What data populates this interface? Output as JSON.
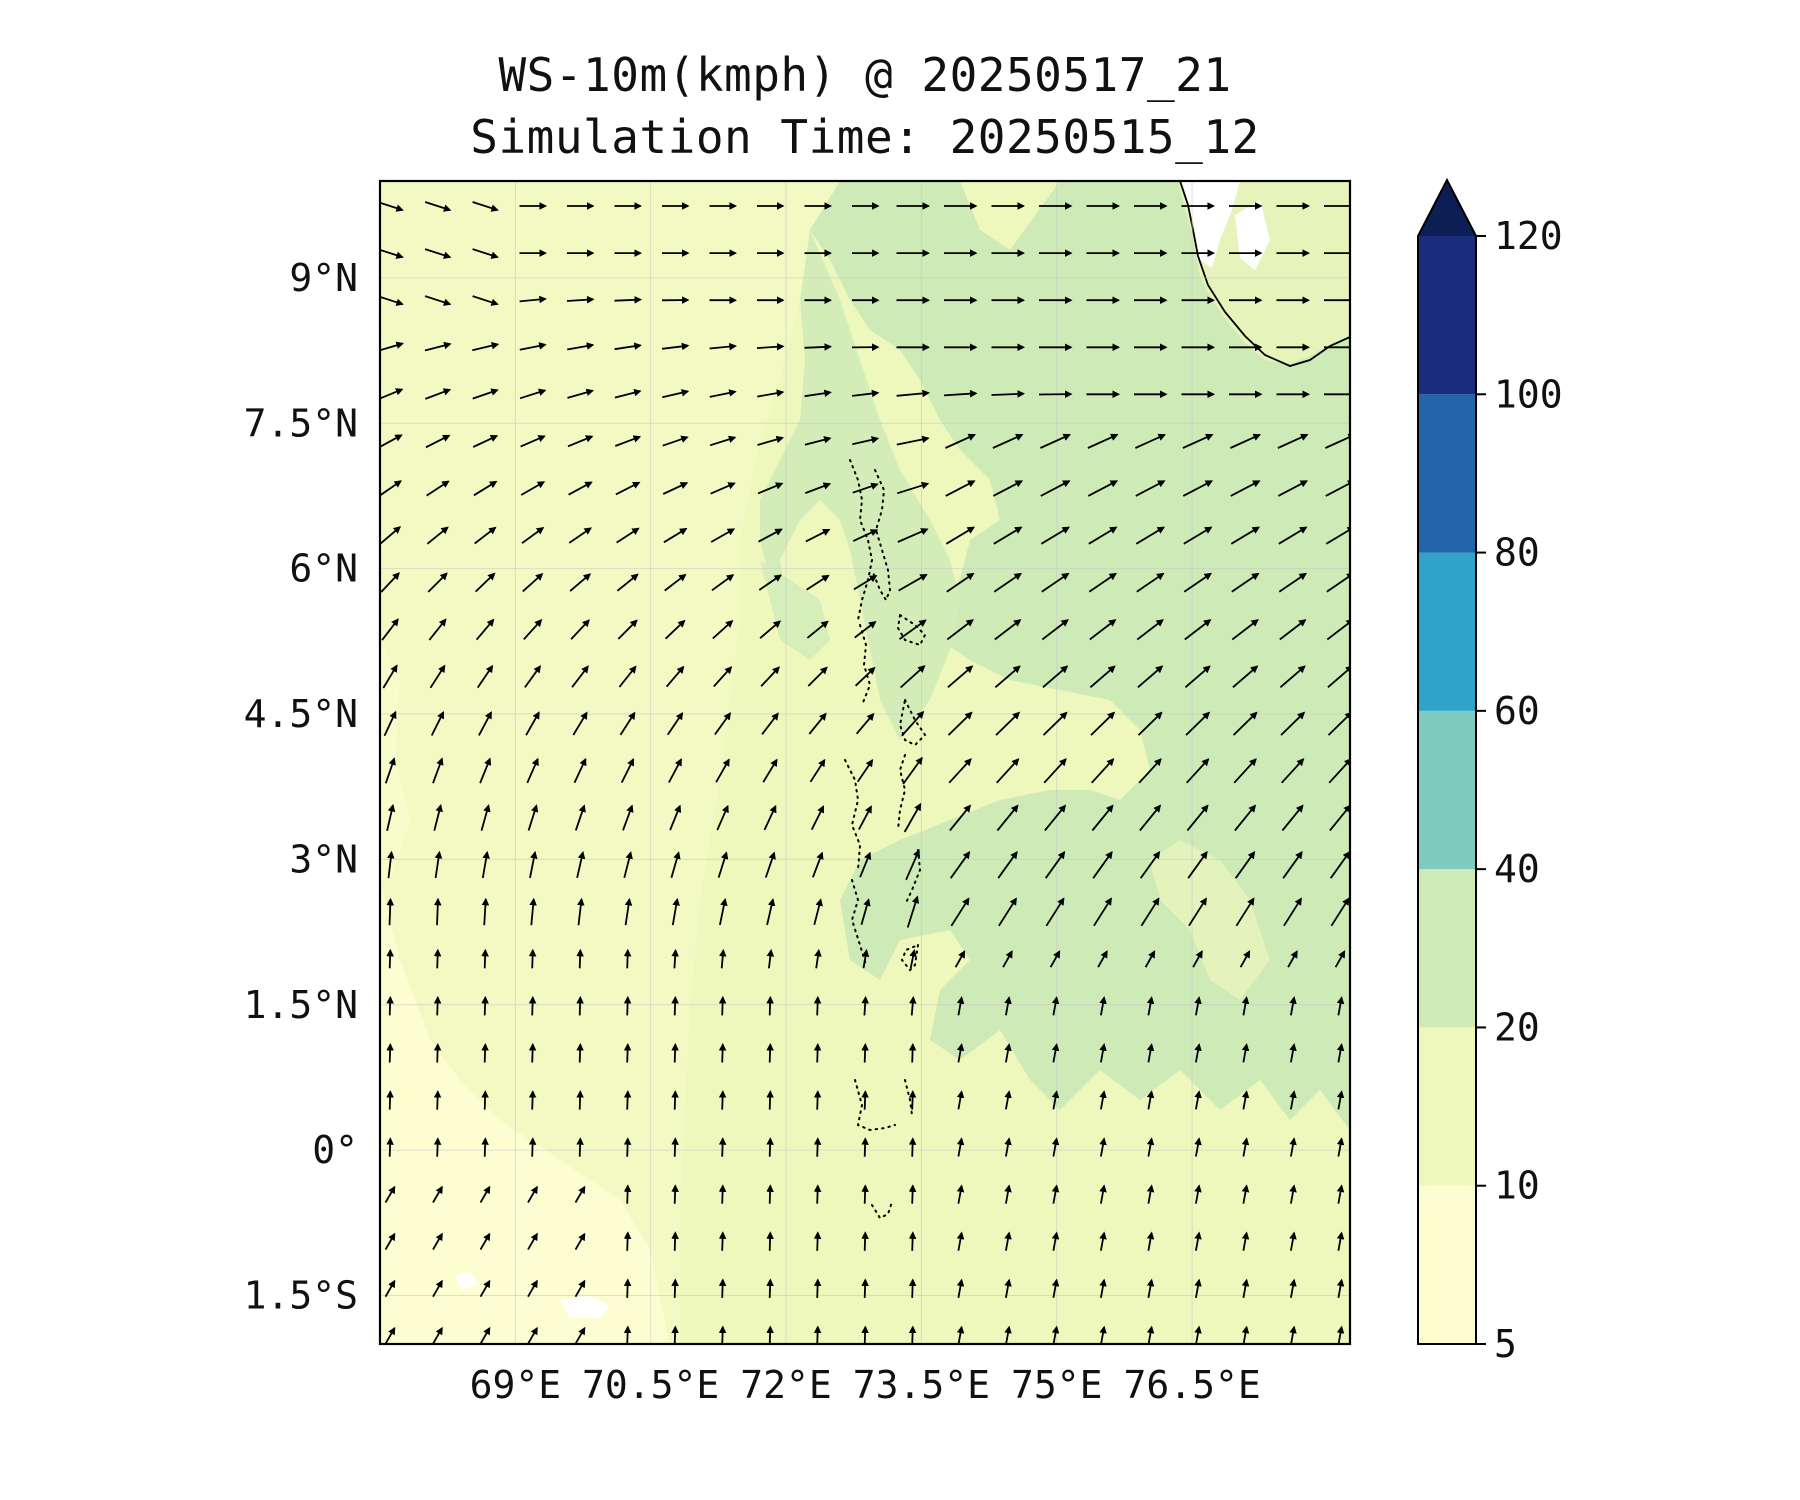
{
  "title": "WS-10m(kmph) @ 20250517_21",
  "subtitle": "Simulation Time: 20250515_12",
  "map": {
    "extent": {
      "lon_min": 67.5,
      "lon_max": 78.25,
      "lat_min": -2.0,
      "lat_max": 10.0
    },
    "lat_ticks": [
      {
        "value": 9.0,
        "label": "9°N"
      },
      {
        "value": 7.5,
        "label": "7.5°N"
      },
      {
        "value": 6.0,
        "label": "6°N"
      },
      {
        "value": 4.5,
        "label": "4.5°N"
      },
      {
        "value": 3.0,
        "label": "3°N"
      },
      {
        "value": 1.5,
        "label": "1.5°N"
      },
      {
        "value": 0.0,
        "label": "0°"
      },
      {
        "value": -1.5,
        "label": "1.5°S"
      }
    ],
    "lon_ticks": [
      {
        "value": 69.0,
        "label": "69°E"
      },
      {
        "value": 70.5,
        "label": "70.5°E"
      },
      {
        "value": 72.0,
        "label": "72°E"
      },
      {
        "value": 73.5,
        "label": "73.5°E"
      },
      {
        "value": 75.0,
        "label": "75°E"
      },
      {
        "value": 76.5,
        "label": "76.5°E"
      }
    ],
    "gridlines": true,
    "features": [
      "Indian Ocean",
      "Maldives atolls",
      "southern tip of India / Sri Lanka coast (top-right)"
    ]
  },
  "colorbar": {
    "levels": [
      "5",
      "10",
      "20",
      "40",
      "60",
      "80",
      "100",
      "120"
    ],
    "colors": [
      "#fcfed2",
      "#eef8bd",
      "#cdeab7",
      "#7fcbbf",
      "#2fa3c8",
      "#2265aa",
      "#1b2c7f"
    ],
    "extend_color": "#0c1f55",
    "extend": "max"
  },
  "wind_field": {
    "lon_count": 21,
    "lat_count": 25,
    "direction_note": "northerly flow in south turning to westerly/southwesterly in north"
  },
  "colors": {
    "frame": "#000000",
    "grid": "#c8c8c8",
    "arrow": "#000000",
    "land": "#ffffff"
  }
}
